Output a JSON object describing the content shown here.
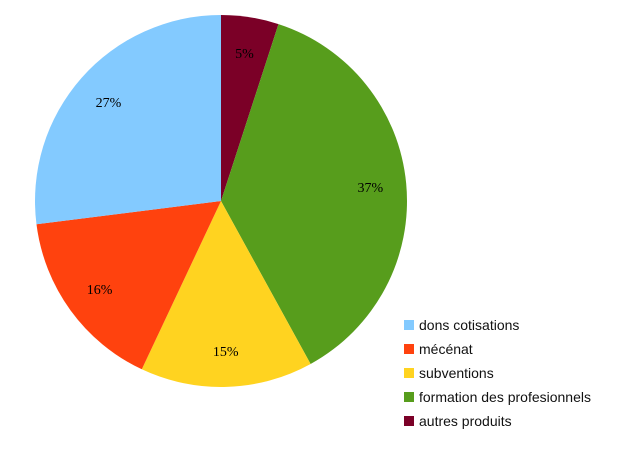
{
  "chart_data": {
    "type": "pie",
    "title": "",
    "start_angle_deg": 0,
    "direction": "clockwise",
    "slices": [
      {
        "name": "autres produits",
        "value": 5,
        "label": "5%",
        "color": "#7B0027"
      },
      {
        "name": "formation des profesionnels",
        "value": 37,
        "label": "37%",
        "color": "#579D1C"
      },
      {
        "name": "subventions",
        "value": 15,
        "label": "15%",
        "color": "#FFD320"
      },
      {
        "name": "mécénat",
        "value": 16,
        "label": "16%",
        "color": "#FF420E"
      },
      {
        "name": "dons cotisations",
        "value": 27,
        "label": "27%",
        "color": "#83CAFF"
      }
    ],
    "legend_placement": "bottom-right",
    "legend": [
      {
        "label": "dons cotisations",
        "color": "#83CAFF"
      },
      {
        "label": "mécénat",
        "color": "#FF420E"
      },
      {
        "label": "subventions",
        "color": "#FFD320"
      },
      {
        "label": "formation des profesionnels",
        "color": "#579D1C"
      },
      {
        "label": "autres produits",
        "color": "#7B0027"
      }
    ]
  }
}
